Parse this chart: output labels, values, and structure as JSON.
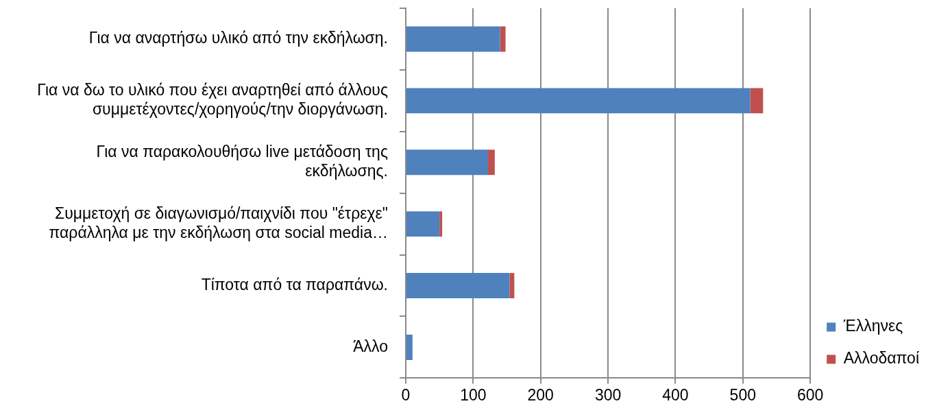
{
  "chart_data": {
    "type": "bar",
    "orientation": "horizontal",
    "stacked": true,
    "categories": [
      "Για να αναρτήσω υλικό από την εκδήλωση.",
      "Για να δω το υλικό που έχει αναρτηθεί από άλλους συμμετέχοντες/χορηγούς/την διοργάνωση.",
      "Για να παρακολουθήσω live μετάδοση της εκδήλωσης.",
      "Συμμετοχή σε διαγωνισμό/παιχνίδι που \"έτρεχε\" παράλληλα με την εκδήλωση στα social media…",
      "Τίποτα από τα παραπάνω.",
      "Άλλο"
    ],
    "series": [
      {
        "name": "Έλληνες",
        "color": "#4f81bd",
        "values": [
          140,
          511,
          122,
          50,
          154,
          10
        ]
      },
      {
        "name": "Αλλοδαποί",
        "color": "#c0504d",
        "values": [
          8,
          19,
          10,
          4,
          7,
          0
        ]
      }
    ],
    "xlim": [
      0,
      600
    ],
    "xticks": [
      0,
      100,
      200,
      300,
      400,
      500,
      600
    ],
    "grid": "x",
    "legend": "bottom right"
  }
}
